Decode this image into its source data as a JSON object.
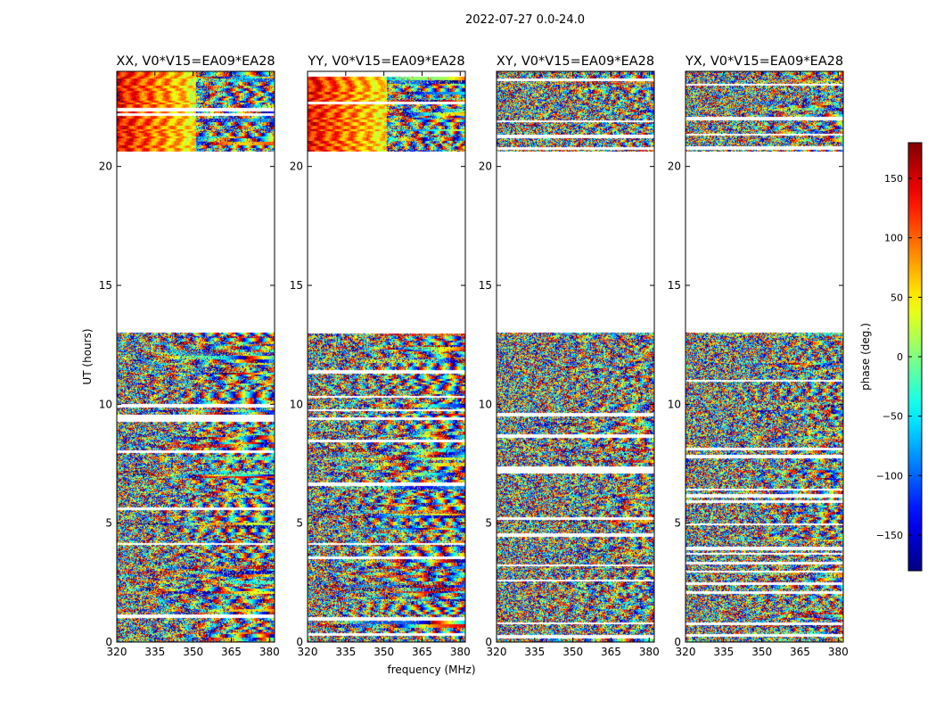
{
  "figure": {
    "suptitle": "2022-07-27 0.0-24.0",
    "xlabel": "frequency (MHz)",
    "ylabel": "UT (hours)",
    "colorbar_label": "phase (deg.)",
    "colormap": "jet"
  },
  "chart_data": [
    {
      "type": "heatmap",
      "title": "XX, V0*V15=EA09*EA28",
      "xlabel": "frequency (MHz)",
      "ylabel": "UT (hours)",
      "xlim": [
        320,
        382
      ],
      "ylim": [
        0,
        24
      ],
      "x_ticks": [
        320,
        335,
        350,
        365,
        380
      ],
      "y_ticks": [
        0,
        5,
        10,
        15,
        20
      ],
      "data_ranges_hours": [
        [
          0,
          13.1
        ],
        [
          20.7,
          24
        ]
      ],
      "value_range": [
        -180,
        180
      ],
      "pattern": "parallel"
    },
    {
      "type": "heatmap",
      "title": "YY, V0*V15=EA09*EA28",
      "xlabel": "",
      "ylabel": "",
      "xlim": [
        320,
        382
      ],
      "ylim": [
        0,
        24
      ],
      "x_ticks": [
        320,
        335,
        350,
        365,
        380
      ],
      "y_ticks": [
        0,
        5,
        10,
        15,
        20
      ],
      "data_ranges_hours": [
        [
          0,
          13.1
        ],
        [
          20.7,
          24
        ]
      ],
      "value_range": [
        -180,
        180
      ],
      "pattern": "parallel"
    },
    {
      "type": "heatmap",
      "title": "XY, V0*V15=EA09*EA28",
      "xlabel": "",
      "ylabel": "",
      "xlim": [
        320,
        382
      ],
      "ylim": [
        0,
        24
      ],
      "x_ticks": [
        320,
        335,
        350,
        365,
        380
      ],
      "y_ticks": [
        0,
        5,
        10,
        15,
        20
      ],
      "data_ranges_hours": [
        [
          0,
          13.1
        ],
        [
          20.7,
          24
        ]
      ],
      "value_range": [
        -180,
        180
      ],
      "pattern": "cross"
    },
    {
      "type": "heatmap",
      "title": "YX, V0*V15=EA09*EA28",
      "xlabel": "",
      "ylabel": "",
      "xlim": [
        320,
        382
      ],
      "ylim": [
        0,
        24
      ],
      "x_ticks": [
        320,
        335,
        350,
        365,
        380
      ],
      "y_ticks": [
        0,
        5,
        10,
        15,
        20
      ],
      "data_ranges_hours": [
        [
          0,
          13.1
        ],
        [
          20.7,
          24
        ]
      ],
      "value_range": [
        -180,
        180
      ],
      "pattern": "cross"
    }
  ],
  "colorbar": {
    "range": [
      -180,
      180
    ],
    "ticks": [
      150,
      100,
      50,
      0,
      -50,
      -100,
      -150
    ],
    "tick_labels": [
      "150",
      "100",
      "50",
      "0",
      "−50",
      "−100",
      "−150"
    ]
  }
}
